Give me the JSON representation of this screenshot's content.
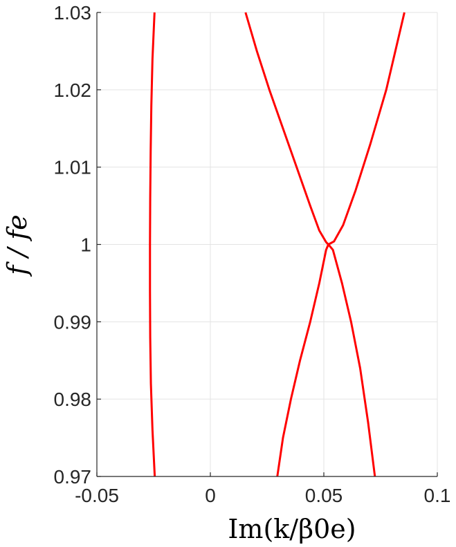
{
  "chart_data": {
    "type": "line",
    "title": "",
    "xlabel": "Im(k/β0e)",
    "ylabel": "f / fe",
    "xlim": [
      -0.05,
      0.1
    ],
    "ylim": [
      0.97,
      1.03
    ],
    "xticks": [
      -0.05,
      0,
      0.05,
      0.1
    ],
    "xtick_labels": [
      "-0.05",
      "0",
      "0.05",
      "0.1"
    ],
    "yticks": [
      0.97,
      0.98,
      0.99,
      1,
      1.01,
      1.02,
      1.03
    ],
    "ytick_labels": [
      "0.97",
      "0.98",
      "0.99",
      "1",
      "1.01",
      "1.02",
      "1.03"
    ],
    "grid": true,
    "legend": "none",
    "series_color": "#ff0000",
    "series": [
      {
        "x": [
          -0.0245,
          -0.0255,
          -0.0262,
          -0.0265,
          -0.0266,
          -0.0266,
          -0.0265,
          -0.0263,
          -0.026,
          -0.0255,
          -0.0246
        ],
        "y": [
          0.97,
          0.976,
          0.982,
          0.988,
          0.994,
          1.0,
          1.006,
          1.012,
          1.018,
          1.024,
          1.03
        ]
      },
      {
        "x": [
          0.0155,
          0.0205,
          0.026,
          0.032,
          0.038,
          0.044,
          0.048,
          0.051,
          0.052,
          0.0545,
          0.0585,
          0.064,
          0.0705,
          0.0775,
          0.0855
        ],
        "y": [
          1.03,
          1.025,
          1.02,
          1.015,
          1.01,
          1.005,
          1.0018,
          1.0003,
          1.0,
          1.0004,
          1.0025,
          1.007,
          1.013,
          1.02,
          1.03
        ]
      },
      {
        "x": [
          0.0295,
          0.032,
          0.0355,
          0.0395,
          0.044,
          0.048,
          0.051,
          0.052,
          0.054,
          0.058,
          0.062,
          0.066,
          0.0695,
          0.0725
        ],
        "y": [
          0.97,
          0.975,
          0.98,
          0.985,
          0.99,
          0.995,
          0.9993,
          1.0,
          0.9993,
          0.995,
          0.99,
          0.984,
          0.977,
          0.97
        ]
      }
    ]
  }
}
